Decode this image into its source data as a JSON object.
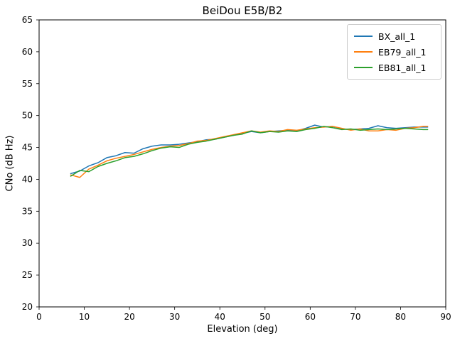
{
  "chart_data": {
    "type": "line",
    "title": "BeiDou E5B/B2",
    "xlabel": "Elevation (deg)",
    "ylabel": "CNo (dB Hz)",
    "xlim": [
      0,
      90
    ],
    "ylim": [
      20,
      65
    ],
    "xticks": [
      0,
      10,
      20,
      30,
      40,
      50,
      60,
      70,
      80,
      90
    ],
    "yticks": [
      20,
      25,
      30,
      35,
      40,
      45,
      50,
      55,
      60,
      65
    ],
    "grid": false,
    "legend_position": "upper right",
    "x": [
      7,
      9,
      11,
      13,
      15,
      17,
      19,
      21,
      23,
      25,
      27,
      29,
      31,
      33,
      35,
      37,
      39,
      41,
      43,
      45,
      47,
      49,
      51,
      53,
      55,
      57,
      59,
      61,
      63,
      65,
      67,
      69,
      71,
      73,
      75,
      77,
      79,
      81,
      83,
      85,
      86
    ],
    "series": [
      {
        "name": "BX_all_1",
        "color": "#1f77b4",
        "values": [
          40.9,
          41.3,
          42.1,
          42.6,
          43.4,
          43.7,
          44.2,
          44.1,
          44.8,
          45.2,
          45.4,
          45.4,
          45.5,
          45.7,
          45.9,
          46.2,
          46.3,
          46.6,
          46.9,
          47.2,
          47.5,
          47.3,
          47.5,
          47.6,
          47.7,
          47.6,
          48.0,
          48.5,
          48.2,
          48.3,
          47.9,
          47.8,
          47.9,
          48.0,
          48.4,
          48.1,
          48.0,
          48.1,
          48.2,
          48.2,
          48.2
        ]
      },
      {
        "name": "EB79_all_1",
        "color": "#ff7f0e",
        "values": [
          40.7,
          40.3,
          41.6,
          42.2,
          42.9,
          43.3,
          43.6,
          43.9,
          44.3,
          44.7,
          45.0,
          45.2,
          45.3,
          45.6,
          46.0,
          46.1,
          46.4,
          46.7,
          47.0,
          47.3,
          47.6,
          47.4,
          47.6,
          47.5,
          47.8,
          47.7,
          47.9,
          48.1,
          48.2,
          48.3,
          48.0,
          47.7,
          47.9,
          47.6,
          47.6,
          47.8,
          47.7,
          48.0,
          48.1,
          48.3,
          48.3
        ]
      },
      {
        "name": "EB81_all_1",
        "color": "#2ca02c",
        "values": [
          40.5,
          41.4,
          41.2,
          42.0,
          42.5,
          42.9,
          43.4,
          43.6,
          44.0,
          44.5,
          44.9,
          45.1,
          45.0,
          45.5,
          45.8,
          46.0,
          46.3,
          46.6,
          46.9,
          47.1,
          47.6,
          47.3,
          47.5,
          47.4,
          47.6,
          47.5,
          47.8,
          48.0,
          48.3,
          48.1,
          47.8,
          47.9,
          47.7,
          47.8,
          47.9,
          47.8,
          47.9,
          48.0,
          47.9,
          47.8,
          47.8
        ]
      }
    ]
  }
}
